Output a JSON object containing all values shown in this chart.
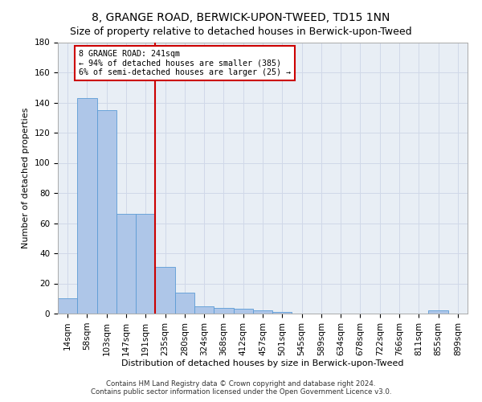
{
  "title": "8, GRANGE ROAD, BERWICK-UPON-TWEED, TD15 1NN",
  "subtitle": "Size of property relative to detached houses in Berwick-upon-Tweed",
  "xlabel": "Distribution of detached houses by size in Berwick-upon-Tweed",
  "ylabel": "Number of detached properties",
  "categories": [
    "14sqm",
    "58sqm",
    "103sqm",
    "147sqm",
    "191sqm",
    "235sqm",
    "280sqm",
    "324sqm",
    "368sqm",
    "412sqm",
    "457sqm",
    "501sqm",
    "545sqm",
    "589sqm",
    "634sqm",
    "678sqm",
    "722sqm",
    "766sqm",
    "811sqm",
    "855sqm",
    "899sqm"
  ],
  "values": [
    10,
    143,
    135,
    66,
    66,
    31,
    14,
    5,
    4,
    3,
    2,
    1,
    0,
    0,
    0,
    0,
    0,
    0,
    0,
    2,
    0
  ],
  "bar_color": "#aec6e8",
  "bar_edge_color": "#5b9bd5",
  "vline_index": 5,
  "annotation_line1": "8 GRANGE ROAD: 241sqm",
  "annotation_line2": "← 94% of detached houses are smaller (385)",
  "annotation_line3": "6% of semi-detached houses are larger (25) →",
  "annotation_box_color": "#ffffff",
  "annotation_border_color": "#cc0000",
  "vline_color": "#cc0000",
  "ylim": [
    0,
    180
  ],
  "yticks": [
    0,
    20,
    40,
    60,
    80,
    100,
    120,
    140,
    160,
    180
  ],
  "grid_color": "#d0d8e8",
  "bg_color": "#e8eef5",
  "title_fontsize": 10,
  "axis_fontsize": 7.5,
  "footer1": "Contains HM Land Registry data © Crown copyright and database right 2024.",
  "footer2": "Contains public sector information licensed under the Open Government Licence v3.0."
}
